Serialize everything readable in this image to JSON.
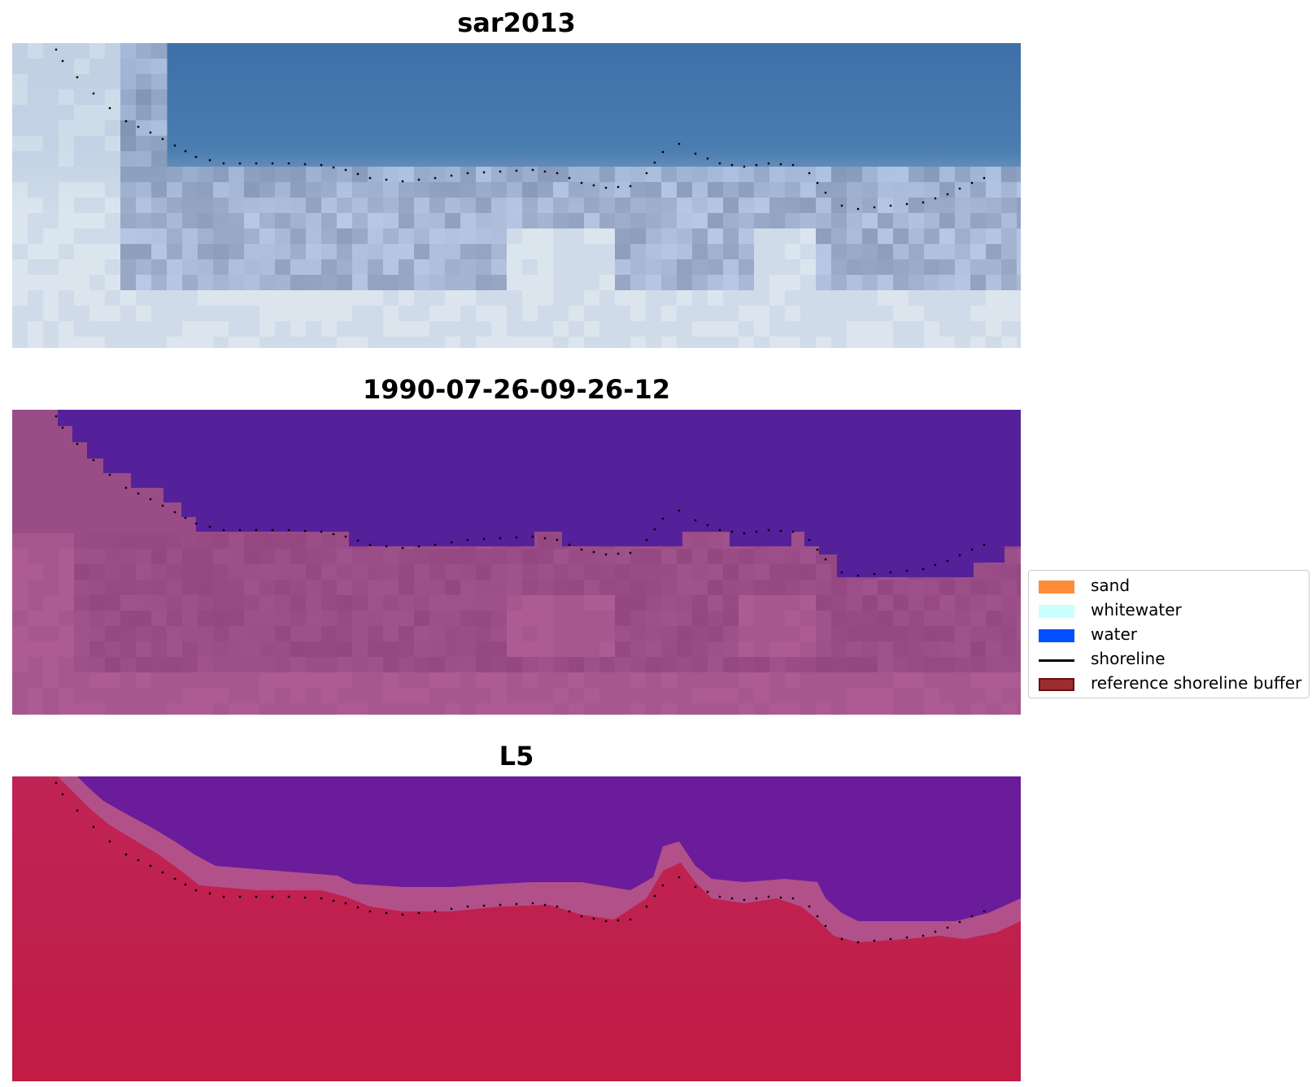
{
  "panels": [
    {
      "title": "sar2013",
      "style": "rgb"
    },
    {
      "title": "1990-07-26-09-26-12",
      "style": "classified"
    },
    {
      "title": "L5",
      "style": "index"
    }
  ],
  "legend": {
    "items": [
      {
        "label": "sand",
        "kind": "patch",
        "color": "#ff8c3a"
      },
      {
        "label": "whitewater",
        "kind": "patch",
        "color": "#c8ffff"
      },
      {
        "label": "water",
        "kind": "patch",
        "color": "#0050ff"
      },
      {
        "label": "shoreline",
        "kind": "line",
        "color": "#000000"
      },
      {
        "label": "reference shoreline buffer",
        "kind": "patch",
        "color": "#9b2d30",
        "border": "#6b0f12"
      }
    ]
  },
  "colors": {
    "water_class": "#54219a",
    "land_class": "#9a4c86",
    "index_water": "#6a1a9a",
    "index_land": "#c0204a"
  }
}
